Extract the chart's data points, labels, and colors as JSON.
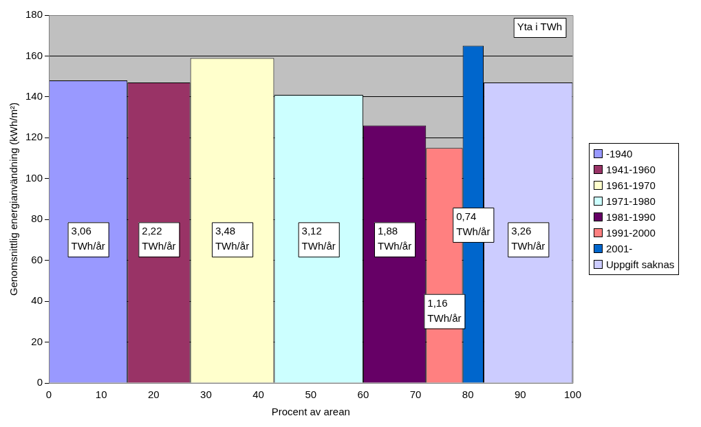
{
  "chart_data": {
    "type": "histogram",
    "xlabel": "Procent av arean",
    "ylabel": "Genomsnittlig energianvändning (kWh/m²)",
    "bins": [
      0,
      15,
      27,
      43,
      60,
      72,
      79,
      83,
      100
    ],
    "series": [
      {
        "name": "-1940",
        "color": "#9999ff",
        "values": [
          148,
          null,
          null,
          null,
          null,
          null,
          null,
          null
        ]
      },
      {
        "name": "1941-1960",
        "color": "#993366",
        "values": [
          null,
          147,
          null,
          null,
          null,
          null,
          null,
          null
        ]
      },
      {
        "name": "1961-1970",
        "color": "#ffffcc",
        "values": [
          null,
          null,
          159,
          null,
          null,
          null,
          null,
          null
        ]
      },
      {
        "name": "1971-1980",
        "color": "#ccffff",
        "values": [
          null,
          null,
          null,
          141,
          null,
          null,
          null,
          null
        ]
      },
      {
        "name": "1981-1990",
        "color": "#660066",
        "values": [
          null,
          null,
          null,
          null,
          126,
          null,
          null,
          null
        ]
      },
      {
        "name": "1991-2000",
        "color": "#ff8080",
        "values": [
          null,
          null,
          null,
          null,
          null,
          115,
          null,
          null
        ]
      },
      {
        "name": "2001-",
        "color": "#0066cc",
        "values": [
          null,
          null,
          null,
          null,
          null,
          null,
          165,
          null
        ]
      },
      {
        "name": "Uppgift saknas",
        "color": "#ccccff",
        "values": [
          null,
          null,
          null,
          null,
          null,
          null,
          null,
          147
        ]
      }
    ],
    "annotations": [
      "Yta i TWh",
      "3,06 TWh/år",
      "2,22 TWh/år",
      "3,48 TWh/år",
      "3,12 TWh/år",
      "1,88 TWh/år",
      "1,16 TWh/år",
      "0,74 TWh/år",
      "3,26 TWh/år"
    ],
    "xlim": [
      0,
      100
    ],
    "xticks": [
      0,
      10,
      20,
      30,
      40,
      50,
      60,
      70,
      80,
      90,
      100
    ],
    "ylim": [
      0,
      180
    ],
    "yticks": [
      0,
      20,
      40,
      60,
      80,
      100,
      120,
      140,
      160,
      180
    ],
    "grid": "y",
    "legend": "right"
  }
}
